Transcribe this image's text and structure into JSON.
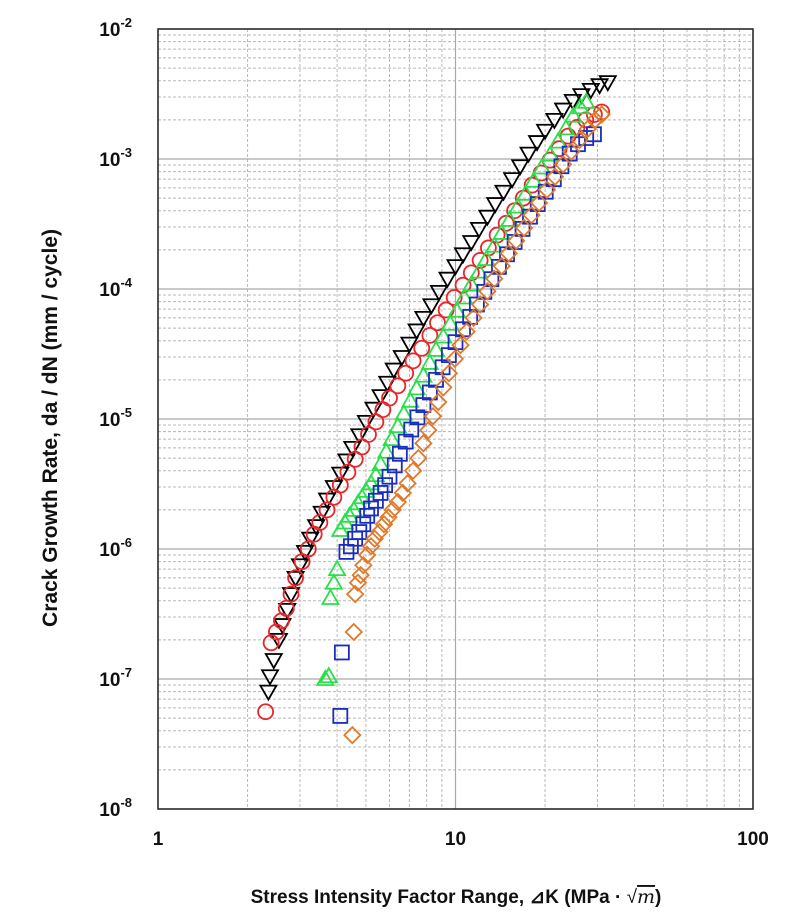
{
  "chart_data": {
    "type": "scatter",
    "title": "",
    "xlabel": "Stress Intensity Factor Range, ⊿K (MPa · √m)",
    "xlabel_main": "Stress Intensity Factor Range, ⊿K (MPa · ",
    "xlabel_sqrt_arg": "m",
    "xlabel_close": ")",
    "ylabel": "Crack Growth Rate, da / dN (mm / cycle)",
    "xscale": "log",
    "yscale": "log",
    "xlim": [
      1,
      100
    ],
    "ylim": [
      1e-08,
      0.01
    ],
    "grid": true,
    "legend": "none",
    "x_ticks": [
      {
        "value": 1,
        "label": "1"
      },
      {
        "value": 10,
        "label": "10"
      },
      {
        "value": 100,
        "label": "100"
      }
    ],
    "y_ticks": [
      {
        "value": 1e-08,
        "base": "10",
        "exp": "-8"
      },
      {
        "value": 1e-07,
        "base": "10",
        "exp": "-7"
      },
      {
        "value": 1e-06,
        "base": "10",
        "exp": "-6"
      },
      {
        "value": 1e-05,
        "base": "10",
        "exp": "-5"
      },
      {
        "value": 0.0001,
        "base": "10",
        "exp": "-4"
      },
      {
        "value": 0.001,
        "base": "10",
        "exp": "-3"
      },
      {
        "value": 0.01,
        "base": "10",
        "exp": "-2"
      }
    ],
    "series": [
      {
        "marker": "triangle-down",
        "color": "#000000",
        "points": [
          [
            2.35,
            8e-08
          ],
          [
            2.38,
            1.05e-07
          ],
          [
            2.45,
            1.4e-07
          ],
          [
            2.55,
            2e-07
          ],
          [
            2.62,
            2.6e-07
          ],
          [
            2.72,
            3.4e-07
          ],
          [
            2.8,
            4.5e-07
          ],
          [
            2.9,
            6e-07
          ],
          [
            3.0,
            7.5e-07
          ],
          [
            3.12,
            9.5e-07
          ],
          [
            3.25,
            1.2e-06
          ],
          [
            3.4,
            1.5e-06
          ],
          [
            3.55,
            1.9e-06
          ],
          [
            3.7,
            2.4e-06
          ],
          [
            3.9,
            3e-06
          ],
          [
            4.1,
            3.8e-06
          ],
          [
            4.3,
            4.8e-06
          ],
          [
            4.5,
            6e-06
          ],
          [
            4.75,
            7.5e-06
          ],
          [
            5.0,
            9.5e-06
          ],
          [
            5.3,
            1.2e-05
          ],
          [
            5.6,
            1.5e-05
          ],
          [
            5.9,
            1.9e-05
          ],
          [
            6.2,
            2.4e-05
          ],
          [
            6.6,
            3e-05
          ],
          [
            7.0,
            3.8e-05
          ],
          [
            7.4,
            4.8e-05
          ],
          [
            7.8,
            6e-05
          ],
          [
            8.3,
            7.5e-05
          ],
          [
            8.8,
            9.5e-05
          ],
          [
            9.4,
            0.00012
          ],
          [
            10.0,
            0.00015
          ],
          [
            10.6,
            0.000185
          ],
          [
            11.3,
            0.00023
          ],
          [
            12.0,
            0.00029
          ],
          [
            12.8,
            0.00036
          ],
          [
            13.6,
            0.00045
          ],
          [
            14.5,
            0.00056
          ],
          [
            15.5,
            0.0007
          ],
          [
            16.5,
            0.00088
          ],
          [
            17.6,
            0.0011
          ],
          [
            18.8,
            0.00135
          ],
          [
            20.0,
            0.00165
          ],
          [
            21.5,
            0.002
          ],
          [
            23.0,
            0.0024
          ],
          [
            24.8,
            0.0028
          ],
          [
            26.5,
            0.0031
          ],
          [
            28.5,
            0.0034
          ],
          [
            30.5,
            0.0037
          ],
          [
            32.5,
            0.0039
          ]
        ]
      },
      {
        "marker": "circle",
        "color": "#e8262a",
        "points": [
          [
            2.3,
            5.6e-08
          ],
          [
            2.4,
            1.9e-07
          ],
          [
            2.5,
            2.3e-07
          ],
          [
            2.6,
            2.8e-07
          ],
          [
            2.7,
            3.5e-07
          ],
          [
            2.8,
            4.5e-07
          ],
          [
            2.9,
            6e-07
          ],
          [
            3.05,
            8e-07
          ],
          [
            3.2,
            1e-06
          ],
          [
            3.35,
            1.3e-06
          ],
          [
            3.5,
            1.6e-06
          ],
          [
            3.7,
            2e-06
          ],
          [
            3.9,
            2.5e-06
          ],
          [
            4.1,
            3.1e-06
          ],
          [
            4.35,
            3.9e-06
          ],
          [
            4.6,
            4.9e-06
          ],
          [
            4.85,
            6.1e-06
          ],
          [
            5.1,
            7.6e-06
          ],
          [
            5.4,
            9.5e-06
          ],
          [
            5.7,
            1.18e-05
          ],
          [
            6.0,
            1.45e-05
          ],
          [
            6.4,
            1.8e-05
          ],
          [
            6.8,
            2.25e-05
          ],
          [
            7.2,
            2.8e-05
          ],
          [
            7.7,
            3.5e-05
          ],
          [
            8.2,
            4.4e-05
          ],
          [
            8.7,
            5.5e-05
          ],
          [
            9.3,
            6.9e-05
          ],
          [
            9.9,
            8.6e-05
          ],
          [
            10.6,
            0.000107
          ],
          [
            11.3,
            0.000133
          ],
          [
            12.1,
            0.000166
          ],
          [
            12.9,
            0.000207
          ],
          [
            13.8,
            0.00026
          ],
          [
            14.8,
            0.00032
          ],
          [
            15.8,
            0.0004
          ],
          [
            16.9,
            0.0005
          ],
          [
            18.1,
            0.00063
          ],
          [
            19.4,
            0.00078
          ],
          [
            20.8,
            0.00098
          ],
          [
            22.3,
            0.0012
          ],
          [
            23.9,
            0.0015
          ],
          [
            25.6,
            0.00175
          ],
          [
            27.4,
            0.002
          ],
          [
            29.3,
            0.0022
          ],
          [
            31.0,
            0.0023
          ]
        ]
      },
      {
        "marker": "triangle-up",
        "color": "#29e04a",
        "points": [
          [
            3.65,
            1e-07
          ],
          [
            3.75,
            1.05e-07
          ],
          [
            3.8,
            4.2e-07
          ],
          [
            3.9,
            5.5e-07
          ],
          [
            4.0,
            7e-07
          ],
          [
            4.1,
            1.4e-06
          ],
          [
            4.25,
            1.6e-06
          ],
          [
            4.4,
            1.8e-06
          ],
          [
            4.55,
            2e-06
          ],
          [
            4.7,
            2.25e-06
          ],
          [
            4.85,
            2.5e-06
          ],
          [
            5.0,
            2.8e-06
          ],
          [
            5.2,
            3.2e-06
          ],
          [
            5.4,
            3.7e-06
          ],
          [
            5.6,
            4.5e-06
          ],
          [
            5.85,
            5.6e-06
          ],
          [
            6.1,
            7e-06
          ],
          [
            6.4,
            8.8e-06
          ],
          [
            6.7,
            1.1e-05
          ],
          [
            7.05,
            1.38e-05
          ],
          [
            7.4,
            1.72e-05
          ],
          [
            7.8,
            2.15e-05
          ],
          [
            8.2,
            2.7e-05
          ],
          [
            8.6,
            3.4e-05
          ],
          [
            9.1,
            4.3e-05
          ],
          [
            9.6,
            5.4e-05
          ],
          [
            10.1,
            6.8e-05
          ],
          [
            10.7,
            8.6e-05
          ],
          [
            11.3,
            0.000108
          ],
          [
            12.0,
            0.000136
          ],
          [
            12.7,
            0.00017
          ],
          [
            13.5,
            0.000215
          ],
          [
            14.3,
            0.00027
          ],
          [
            15.2,
            0.00034
          ],
          [
            16.2,
            0.00043
          ],
          [
            17.2,
            0.00054
          ],
          [
            18.3,
            0.00068
          ],
          [
            19.5,
            0.00086
          ],
          [
            20.8,
            0.00108
          ],
          [
            22.1,
            0.00136
          ],
          [
            23.5,
            0.00172
          ],
          [
            24.9,
            0.00215
          ],
          [
            26.3,
            0.0025
          ],
          [
            27.5,
            0.00275
          ]
        ]
      },
      {
        "marker": "square",
        "color": "#1a2dbd",
        "points": [
          [
            4.1,
            5.2e-08
          ],
          [
            4.15,
            1.6e-07
          ],
          [
            4.3,
            9.5e-07
          ],
          [
            4.45,
            1.05e-06
          ],
          [
            4.6,
            1.2e-06
          ],
          [
            4.75,
            1.35e-06
          ],
          [
            4.9,
            1.55e-06
          ],
          [
            5.05,
            1.8e-06
          ],
          [
            5.2,
            2.05e-06
          ],
          [
            5.4,
            2.35e-06
          ],
          [
            5.6,
            2.7e-06
          ],
          [
            5.8,
            3.1e-06
          ],
          [
            6.0,
            3.6e-06
          ],
          [
            6.25,
            4.4e-06
          ],
          [
            6.5,
            5.4e-06
          ],
          [
            6.8,
            6.7e-06
          ],
          [
            7.1,
            8.3e-06
          ],
          [
            7.45,
            1.03e-05
          ],
          [
            7.8,
            1.28e-05
          ],
          [
            8.2,
            1.6e-05
          ],
          [
            8.6,
            2e-05
          ],
          [
            9.05,
            2.5e-05
          ],
          [
            9.5,
            3.1e-05
          ],
          [
            10.0,
            3.9e-05
          ],
          [
            10.6,
            4.9e-05
          ],
          [
            11.2,
            6.1e-05
          ],
          [
            11.8,
            7.6e-05
          ],
          [
            12.5,
            9.5e-05
          ],
          [
            13.2,
            0.000119
          ],
          [
            14.0,
            0.000148
          ],
          [
            14.9,
            0.000185
          ],
          [
            15.8,
            0.00023
          ],
          [
            16.8,
            0.00029
          ],
          [
            17.8,
            0.00036
          ],
          [
            18.9,
            0.00045
          ],
          [
            20.1,
            0.00056
          ],
          [
            21.4,
            0.0007
          ],
          [
            22.7,
            0.00088
          ],
          [
            24.2,
            0.0011
          ],
          [
            25.8,
            0.0013
          ],
          [
            27.5,
            0.00145
          ],
          [
            29.2,
            0.00155
          ]
        ]
      },
      {
        "marker": "diamond",
        "color": "#e07a2a",
        "points": [
          [
            4.5,
            3.7e-08
          ],
          [
            4.55,
            2.3e-07
          ],
          [
            4.6,
            4.5e-07
          ],
          [
            4.7,
            5.5e-07
          ],
          [
            4.8,
            6.3e-07
          ],
          [
            4.9,
            7.5e-07
          ],
          [
            5.05,
            9e-07
          ],
          [
            5.2,
            1.05e-06
          ],
          [
            5.35,
            1.2e-06
          ],
          [
            5.55,
            1.35e-06
          ],
          [
            5.75,
            1.55e-06
          ],
          [
            5.95,
            1.75e-06
          ],
          [
            6.15,
            2e-06
          ],
          [
            6.4,
            2.3e-06
          ],
          [
            6.65,
            2.7e-06
          ],
          [
            6.9,
            3.2e-06
          ],
          [
            7.2,
            4e-06
          ],
          [
            7.5,
            5e-06
          ],
          [
            7.8,
            6.5e-06
          ],
          [
            8.1,
            8.2e-06
          ],
          [
            8.4,
            1.05e-05
          ],
          [
            8.75,
            1.35e-05
          ],
          [
            9.1,
            1.75e-05
          ],
          [
            9.5,
            2.25e-05
          ],
          [
            9.95,
            2.9e-05
          ],
          [
            10.4,
            3.7e-05
          ],
          [
            10.9,
            4.7e-05
          ],
          [
            11.5,
            6e-05
          ],
          [
            12.1,
            7.6e-05
          ],
          [
            12.8,
            9.6e-05
          ],
          [
            13.5,
            0.00012
          ],
          [
            14.3,
            0.00015
          ],
          [
            15.1,
            0.000188
          ],
          [
            16.0,
            0.000235
          ],
          [
            17.0,
            0.000295
          ],
          [
            18.0,
            0.00037
          ],
          [
            19.1,
            0.00046
          ],
          [
            20.3,
            0.00058
          ],
          [
            21.6,
            0.00073
          ],
          [
            23.0,
            0.00091
          ],
          [
            24.5,
            0.00114
          ],
          [
            26.1,
            0.0014
          ],
          [
            27.8,
            0.0017
          ],
          [
            29.5,
            0.002
          ],
          [
            31.0,
            0.0022
          ]
        ]
      }
    ]
  }
}
